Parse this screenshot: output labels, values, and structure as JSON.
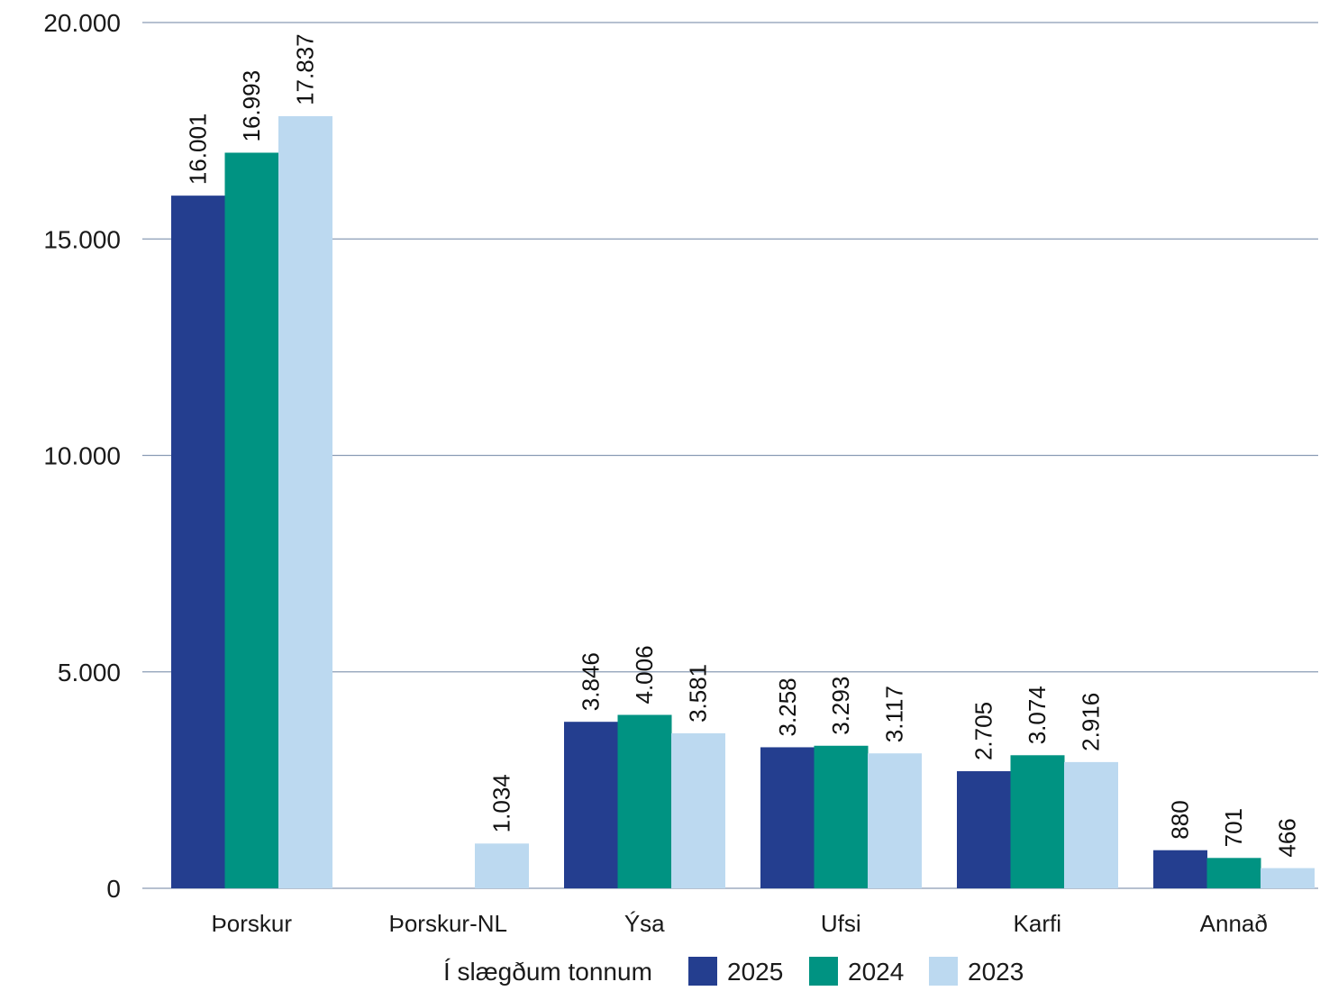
{
  "chart_data": {
    "type": "bar",
    "title": "",
    "xlabel": "",
    "ylabel": "",
    "ylim": [
      0,
      20000
    ],
    "yticks": [
      0,
      5000,
      10000,
      15000,
      20000
    ],
    "ytick_labels": [
      "0",
      "5.000",
      "10.000",
      "15.000",
      "20.000"
    ],
    "grid": true,
    "legend_position": "bottom",
    "legend_title": "Í slægðum tonnum",
    "categories": [
      "Þorskur",
      "Þorskur-NL",
      "Ýsa",
      "Ufsi",
      "Karfi",
      "Annað"
    ],
    "series": [
      {
        "name": "2025",
        "color": "#243e8f",
        "values": [
          16001,
          null,
          3846,
          3258,
          2705,
          880
        ],
        "labels": [
          "16.001",
          "",
          "3.846",
          "3.258",
          "2.705",
          "880"
        ]
      },
      {
        "name": "2024",
        "color": "#009382",
        "values": [
          16993,
          null,
          4006,
          3293,
          3074,
          701
        ],
        "labels": [
          "16.993",
          "",
          "4.006",
          "3.293",
          "3.074",
          "701"
        ]
      },
      {
        "name": "2023",
        "color": "#bcd9f0",
        "values": [
          17837,
          1034,
          3581,
          3117,
          2916,
          466
        ],
        "labels": [
          "17.837",
          "1.034",
          "3.581",
          "3.117",
          "2.916",
          "466"
        ]
      }
    ],
    "colors": {
      "grid": "#8a9bb5",
      "axis": "#8a9bb5"
    }
  }
}
